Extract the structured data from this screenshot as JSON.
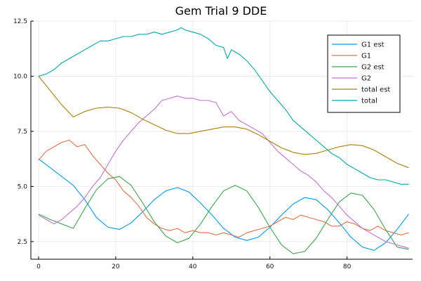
{
  "chart_data": {
    "type": "line",
    "title": "Gem Trial 9 DDE",
    "xlabel": "",
    "ylabel": "",
    "xlim": [
      -2,
      97
    ],
    "ylim": [
      1.7,
      12.5
    ],
    "xticks": [
      0,
      20,
      40,
      60,
      80
    ],
    "yticks": [
      2.5,
      5.0,
      7.5,
      10.0,
      12.5
    ],
    "xtick_labels": [
      "0",
      "20",
      "40",
      "60",
      "80"
    ],
    "ytick_labels": [
      "2.5",
      "5.0",
      "7.5",
      "10.0",
      "12.5"
    ],
    "grid": true,
    "legend_position": "top-right",
    "series": [
      {
        "name": "G1 est",
        "color": "#009af9",
        "x": [
          0,
          3,
          6,
          9,
          12,
          15,
          18,
          21,
          24,
          27,
          30,
          33,
          36,
          39,
          42,
          45,
          48,
          51,
          54,
          57,
          60,
          63,
          66,
          69,
          72,
          75,
          78,
          81,
          84,
          87,
          90,
          93,
          96
        ],
        "y": [
          6.25,
          5.85,
          5.45,
          5.05,
          4.4,
          3.6,
          3.15,
          3.05,
          3.35,
          3.85,
          4.4,
          4.8,
          4.95,
          4.75,
          4.25,
          3.7,
          3.1,
          2.7,
          2.55,
          2.7,
          3.15,
          3.7,
          4.2,
          4.5,
          4.4,
          3.95,
          3.35,
          2.7,
          2.25,
          2.1,
          2.45,
          3.05,
          3.75
        ]
      },
      {
        "name": "G1",
        "color": "#e26f46",
        "x": [
          0,
          2,
          4,
          6,
          8,
          10,
          12,
          14,
          16,
          18,
          20,
          22,
          24,
          26,
          28,
          30,
          32,
          34,
          36,
          38,
          40,
          42,
          44,
          46,
          48,
          50,
          52,
          54,
          56,
          58,
          60,
          62,
          64,
          66,
          68,
          70,
          72,
          74,
          76,
          78,
          80,
          82,
          84,
          86,
          88,
          90,
          92,
          94,
          96
        ],
        "y": [
          6.2,
          6.6,
          6.8,
          7.0,
          7.1,
          6.8,
          6.9,
          6.4,
          6.0,
          5.6,
          5.3,
          4.8,
          4.5,
          4.1,
          3.6,
          3.3,
          3.1,
          3.0,
          3.1,
          2.9,
          3.0,
          2.9,
          2.9,
          2.8,
          2.9,
          2.8,
          2.7,
          2.9,
          3.0,
          3.1,
          3.2,
          3.4,
          3.6,
          3.5,
          3.7,
          3.6,
          3.5,
          3.4,
          3.2,
          3.2,
          3.4,
          3.3,
          3.1,
          3.0,
          3.2,
          3.0,
          2.9,
          2.8,
          2.9
        ]
      },
      {
        "name": "G2 est",
        "color": "#3da44d",
        "x": [
          0,
          3,
          6,
          9,
          12,
          15,
          18,
          21,
          24,
          27,
          30,
          33,
          36,
          39,
          42,
          45,
          48,
          51,
          54,
          57,
          60,
          63,
          66,
          69,
          72,
          75,
          78,
          81,
          84,
          87,
          90,
          93,
          96
        ],
        "y": [
          3.75,
          3.5,
          3.3,
          3.1,
          4.0,
          4.85,
          5.35,
          5.45,
          5.05,
          4.25,
          3.4,
          2.75,
          2.45,
          2.65,
          3.3,
          4.1,
          4.8,
          5.05,
          4.8,
          4.05,
          3.15,
          2.35,
          1.95,
          2.05,
          2.65,
          3.5,
          4.3,
          4.7,
          4.6,
          3.95,
          3.05,
          2.25,
          2.15
        ]
      },
      {
        "name": "G2",
        "color": "#c271d2",
        "x": [
          0,
          2,
          4,
          6,
          8,
          10,
          12,
          14,
          16,
          18,
          20,
          22,
          24,
          26,
          28,
          30,
          32,
          34,
          36,
          38,
          40,
          42,
          44,
          46,
          48,
          50,
          52,
          54,
          56,
          58,
          60,
          62,
          64,
          66,
          68,
          70,
          72,
          74,
          76,
          78,
          80,
          82,
          84,
          86,
          88,
          90,
          92,
          94,
          96
        ],
        "y": [
          3.7,
          3.5,
          3.3,
          3.5,
          3.8,
          4.1,
          4.5,
          5.0,
          5.4,
          6.0,
          6.6,
          7.1,
          7.5,
          7.9,
          8.2,
          8.5,
          8.9,
          9.0,
          9.1,
          9.0,
          9.0,
          8.9,
          8.9,
          8.8,
          8.2,
          8.4,
          8.0,
          7.8,
          7.6,
          7.4,
          7.0,
          6.6,
          6.3,
          6.0,
          5.7,
          5.5,
          5.2,
          4.8,
          4.5,
          4.1,
          3.7,
          3.4,
          3.1,
          2.9,
          2.7,
          2.5,
          2.4,
          2.3,
          2.2
        ]
      },
      {
        "name": "total est",
        "color": "#ad8000",
        "x": [
          0,
          3,
          6,
          9,
          12,
          15,
          18,
          21,
          24,
          27,
          30,
          33,
          36,
          39,
          42,
          45,
          48,
          51,
          54,
          57,
          60,
          63,
          66,
          69,
          72,
          75,
          78,
          81,
          84,
          87,
          90,
          93,
          96
        ],
        "y": [
          10.0,
          9.35,
          8.7,
          8.15,
          8.4,
          8.55,
          8.6,
          8.55,
          8.35,
          8.05,
          7.8,
          7.55,
          7.4,
          7.4,
          7.5,
          7.6,
          7.7,
          7.7,
          7.6,
          7.35,
          7.05,
          6.75,
          6.55,
          6.45,
          6.5,
          6.65,
          6.8,
          6.9,
          6.85,
          6.65,
          6.35,
          6.05,
          5.85
        ]
      },
      {
        "name": "total",
        "color": "#00a9ad",
        "x": [
          0,
          2,
          4,
          6,
          8,
          10,
          12,
          14,
          16,
          18,
          20,
          22,
          24,
          26,
          28,
          30,
          32,
          34,
          36,
          37,
          38,
          40,
          42,
          44,
          46,
          48,
          49,
          50,
          52,
          54,
          56,
          58,
          60,
          62,
          64,
          66,
          68,
          70,
          72,
          74,
          76,
          78,
          80,
          82,
          84,
          86,
          88,
          90,
          92,
          94,
          96
        ],
        "y": [
          10.0,
          10.1,
          10.3,
          10.6,
          10.8,
          11.0,
          11.2,
          11.4,
          11.6,
          11.6,
          11.7,
          11.8,
          11.8,
          11.9,
          11.9,
          12.0,
          11.9,
          12.0,
          12.1,
          12.2,
          12.1,
          12.0,
          11.9,
          11.7,
          11.4,
          11.3,
          10.8,
          11.2,
          11.0,
          10.7,
          10.3,
          9.8,
          9.3,
          8.9,
          8.5,
          8.0,
          7.7,
          7.4,
          7.1,
          6.8,
          6.5,
          6.3,
          6.0,
          5.8,
          5.6,
          5.4,
          5.3,
          5.3,
          5.2,
          5.1,
          5.1
        ]
      }
    ]
  }
}
